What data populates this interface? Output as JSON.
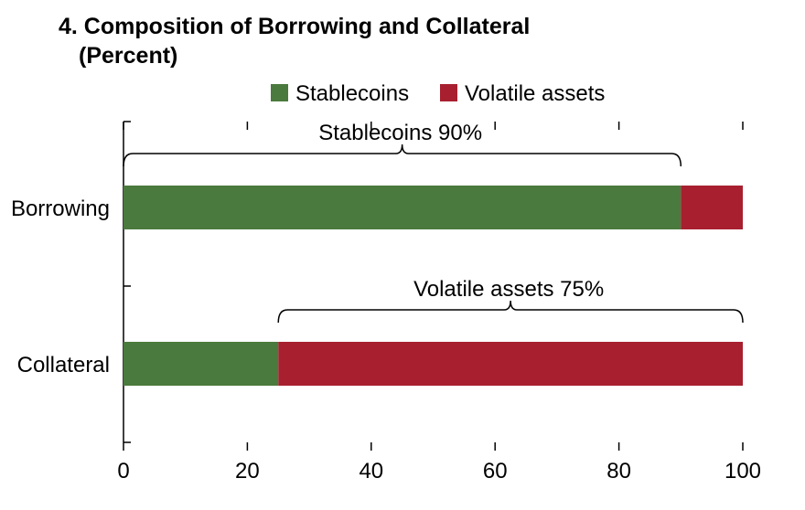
{
  "chart_data": {
    "type": "bar",
    "stacked": true,
    "orientation": "horizontal",
    "title": "4. Composition of Borrowing and Collateral",
    "subtitle": "(Percent)",
    "categories": [
      "Borrowing",
      "Collateral"
    ],
    "series": [
      {
        "name": "Stablecoins",
        "values": [
          90,
          25
        ]
      },
      {
        "name": "Volatile assets",
        "values": [
          10,
          75
        ]
      }
    ],
    "colors": {
      "Stablecoins": "#4a7a3d",
      "Volatile assets": "#a8202f"
    },
    "xlim": [
      0,
      100
    ],
    "xticks": [
      0,
      20,
      40,
      60,
      80,
      100
    ],
    "xlabel": "",
    "ylabel": "",
    "legend": {
      "position": "top",
      "entries": [
        "Stablecoins",
        "Volatile assets"
      ]
    },
    "annotations": [
      {
        "text": "Stablecoins 90%",
        "category": "Borrowing",
        "from": 0,
        "to": 90
      },
      {
        "text": "Volatile assets 75%",
        "category": "Collateral",
        "from": 25,
        "to": 100
      }
    ]
  }
}
